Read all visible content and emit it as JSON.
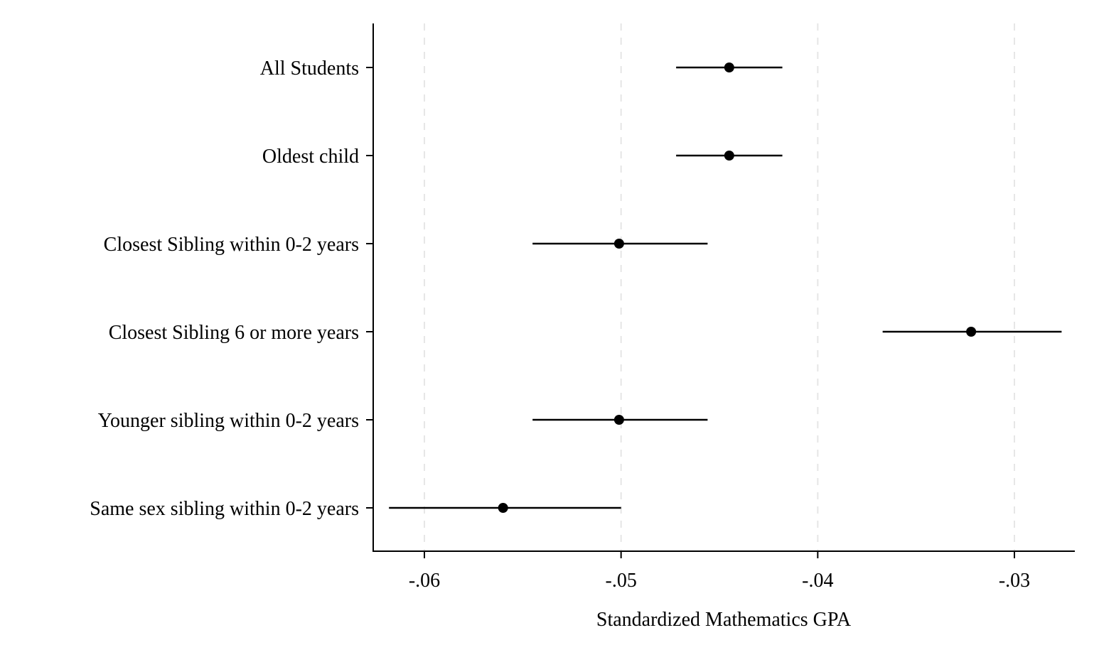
{
  "chart_data": {
    "type": "scatter",
    "subtype": "coefficient-plot",
    "title": "",
    "xlabel": "Standardized Mathematics GPA",
    "ylabel": "",
    "xlim": [
      -0.0626,
      -0.0269
    ],
    "xticks": [
      -0.06,
      -0.05,
      -0.04,
      -0.03
    ],
    "xtick_labels": [
      "-.06",
      "-.05",
      "-.04",
      "-.03"
    ],
    "grid": "vertical dashed at x ticks",
    "legend": "none",
    "categories": [
      "All Students",
      "Oldest child",
      "Closest Sibling within 0-2 years",
      "Closest Sibling 6 or more years",
      "Younger sibling within 0-2 years",
      "Same sex sibling within 0-2 years"
    ],
    "estimates": [
      -0.0445,
      -0.0445,
      -0.0501,
      -0.0322,
      -0.0501,
      -0.056
    ],
    "ci_lower": [
      -0.0472,
      -0.0472,
      -0.0545,
      -0.0367,
      -0.0545,
      -0.0618
    ],
    "ci_upper": [
      -0.0418,
      -0.0418,
      -0.0456,
      -0.0276,
      -0.0456,
      -0.05
    ]
  },
  "colors": {
    "marker": "#000000",
    "ci_line": "#000000",
    "axis": "#000000",
    "grid": "#e6e6e6"
  }
}
